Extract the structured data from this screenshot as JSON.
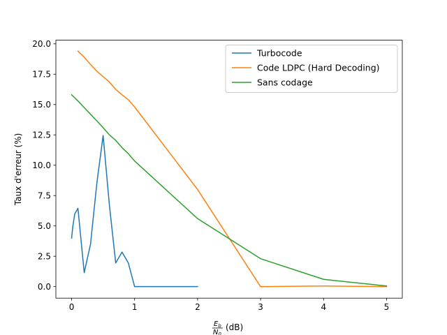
{
  "chart_data": {
    "type": "line",
    "title": "",
    "xlabel": {
      "fraction_numerator": "E",
      "numerator_subscript": "b",
      "fraction_denominator": "N",
      "denominator_subscript": "0",
      "unit": "(dB)"
    },
    "ylabel": "Taux d'erreur (%)",
    "xlim": [
      -0.25,
      5.25
    ],
    "ylim": [
      -0.95,
      20.3
    ],
    "xticks": [
      0,
      1,
      2,
      3,
      4,
      5
    ],
    "xtick_labels": [
      "0",
      "1",
      "2",
      "3",
      "4",
      "5"
    ],
    "yticks": [
      0.0,
      2.5,
      5.0,
      7.5,
      10.0,
      12.5,
      15.0,
      17.5,
      20.0
    ],
    "ytick_labels": [
      "0.0",
      "2.5",
      "5.0",
      "7.5",
      "10.0",
      "12.5",
      "15.0",
      "17.5",
      "20.0"
    ],
    "grid": false,
    "legend_position": "top-right",
    "series": [
      {
        "name": "Turbocode",
        "color": "#1f77b4",
        "x": [
          0.0,
          0.02,
          0.05,
          0.1,
          0.2,
          0.3,
          0.4,
          0.5,
          0.6,
          0.7,
          0.8,
          0.9,
          1.0,
          2.0
        ],
        "y": [
          4.0,
          5.0,
          6.0,
          6.45,
          1.15,
          3.5,
          8.5,
          12.45,
          6.7,
          1.95,
          2.85,
          1.95,
          0.0,
          0.0
        ]
      },
      {
        "name": "Code LDPC (Hard Decoding)",
        "color": "#ff7f0e",
        "x": [
          0.1,
          0.2,
          0.3,
          0.4,
          0.5,
          0.6,
          0.7,
          0.8,
          0.9,
          1.0,
          2.0,
          3.0,
          4.0,
          5.0
        ],
        "y": [
          19.4,
          18.9,
          18.3,
          17.75,
          17.3,
          16.85,
          16.25,
          15.8,
          15.4,
          14.8,
          8.0,
          0.0,
          0.05,
          0.0
        ]
      },
      {
        "name": "Sans codage",
        "color": "#2ca02c",
        "x": [
          0.0,
          0.1,
          0.2,
          0.3,
          0.4,
          0.5,
          0.6,
          0.7,
          0.8,
          0.9,
          1.0,
          2.0,
          3.0,
          4.0,
          5.0
        ],
        "y": [
          15.8,
          15.3,
          14.75,
          14.2,
          13.65,
          13.1,
          12.5,
          12.05,
          11.45,
          10.95,
          10.35,
          5.6,
          2.3,
          0.6,
          0.05
        ]
      }
    ]
  }
}
